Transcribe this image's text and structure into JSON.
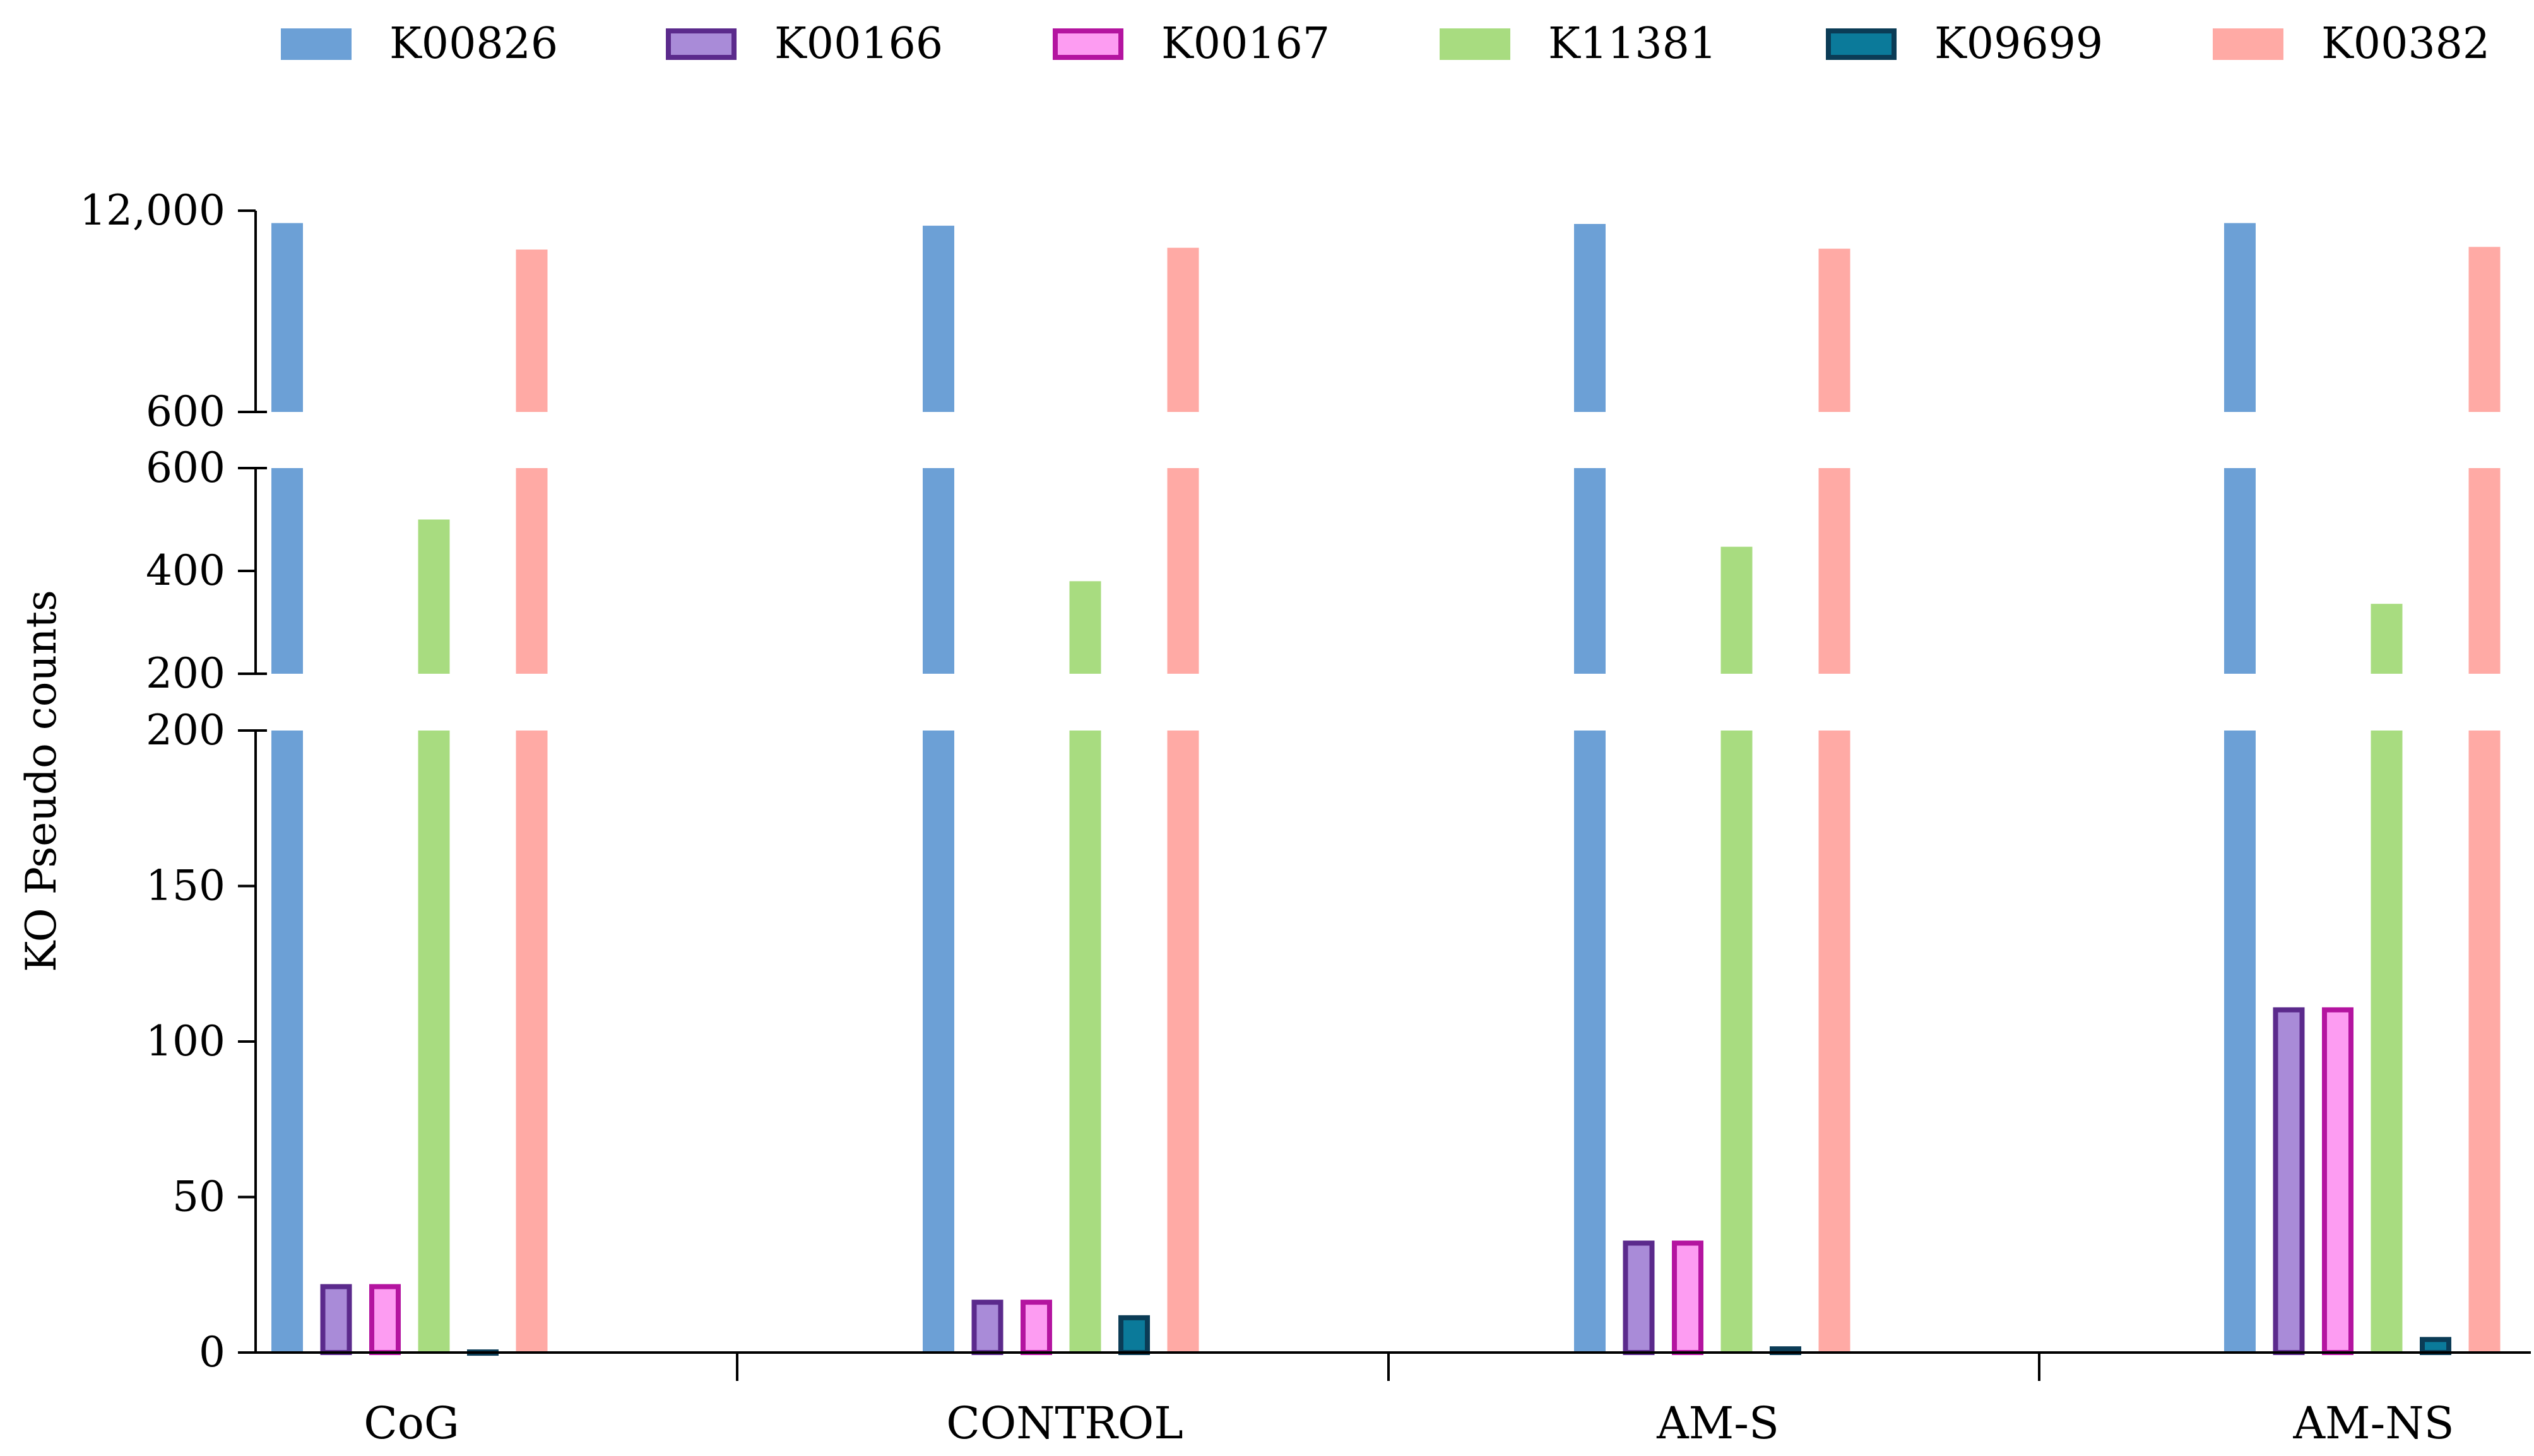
{
  "chart_data": {
    "type": "bar",
    "title": "",
    "xlabel": "",
    "ylabel": "KO Pseudo counts",
    "categories": [
      "CoG",
      "CONTROL",
      "AM-S",
      "AM-NS"
    ],
    "series": [
      {
        "name": "K00826",
        "color": "#6ca0d6",
        "stroke": "#6ca0d6",
        "values": [
          11300,
          11150,
          11250,
          11300
        ]
      },
      {
        "name": "K00166",
        "color": "#a98bd8",
        "stroke": "#5b2a8c",
        "values": [
          22,
          17,
          36,
          111
        ]
      },
      {
        "name": "K00167",
        "color": "#fd9cf2",
        "stroke": "#b414a0",
        "values": [
          22,
          17,
          36,
          111
        ]
      },
      {
        "name": "K11381",
        "color": "#a8dc80",
        "stroke": "#a8dc80",
        "values": [
          500,
          380,
          447,
          336
        ]
      },
      {
        "name": "K09699",
        "color": "#0b7a9a",
        "stroke": "#0b3c56",
        "values": [
          1,
          12,
          2,
          5
        ]
      },
      {
        "name": "K00382",
        "color": "#ffaaa5",
        "stroke": "#ffaaa5",
        "values": [
          9800,
          9900,
          9850,
          9950
        ]
      }
    ],
    "y_axis_segments": [
      {
        "range": [
          0,
          200
        ],
        "ticks": [
          0,
          50,
          100,
          150,
          200
        ],
        "tick_labels": [
          "0",
          "50",
          "100",
          "150",
          "200"
        ]
      },
      {
        "range": [
          200,
          600
        ],
        "ticks": [
          200,
          400,
          600
        ],
        "tick_labels": [
          "200",
          "400",
          "600"
        ]
      },
      {
        "range": [
          600,
          12000
        ],
        "ticks": [
          600,
          12000
        ],
        "tick_labels": [
          "600",
          "12,000"
        ]
      }
    ],
    "legend_position": "top",
    "grid": false
  }
}
